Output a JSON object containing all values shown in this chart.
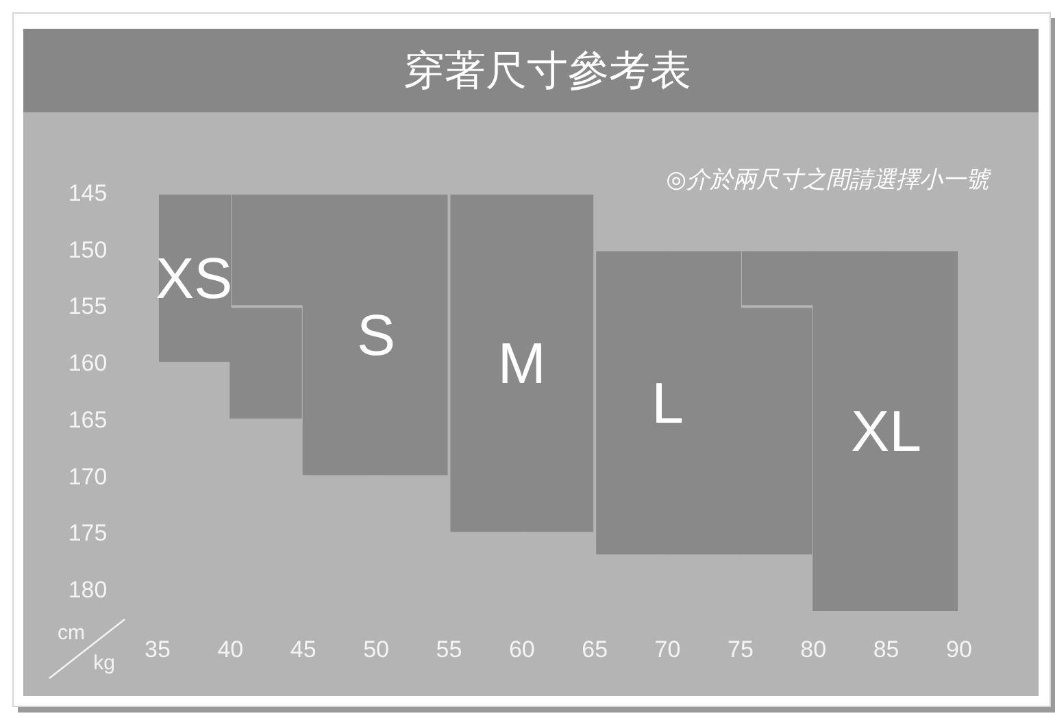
{
  "chart_data": {
    "type": "bar",
    "title": "穿著尺寸參考表",
    "xlabel": "kg",
    "ylabel": "cm",
    "annotations": [
      "◎介於兩尺寸之間請選擇小一號"
    ],
    "xlim": [
      35,
      90
    ],
    "xticks": [
      35,
      40,
      45,
      50,
      55,
      60,
      65,
      70,
      75,
      80,
      85,
      90
    ],
    "ylim": [
      182,
      145
    ],
    "yticks": [
      145,
      150,
      155,
      160,
      165,
      170,
      175,
      180
    ],
    "series": [
      {
        "name": "XS",
        "color": "#898989",
        "x": [
          37.5,
          42.5
        ],
        "base": [
          145,
          155
        ],
        "values": [
          15,
          10
        ]
      },
      {
        "name": "S",
        "color": "#898989",
        "x": [
          42.5,
          47.5,
          52.5
        ],
        "base": [
          145,
          145,
          145
        ],
        "values": [
          10,
          25,
          25
        ]
      },
      {
        "name": "M",
        "color": "#898989",
        "x": [
          57.5,
          62.5
        ],
        "base": [
          145,
          145
        ],
        "values": [
          30,
          30
        ]
      },
      {
        "name": "L",
        "color": "#898989",
        "x": [
          67.5,
          72.5,
          77.5
        ],
        "base": [
          150,
          150,
          155
        ],
        "values": [
          27,
          27,
          22
        ]
      },
      {
        "name": "XL",
        "color": "#898989",
        "x": [
          77.5,
          82.5,
          87.5
        ],
        "base": [
          150,
          150,
          150
        ],
        "values": [
          5,
          32,
          32
        ]
      }
    ]
  }
}
